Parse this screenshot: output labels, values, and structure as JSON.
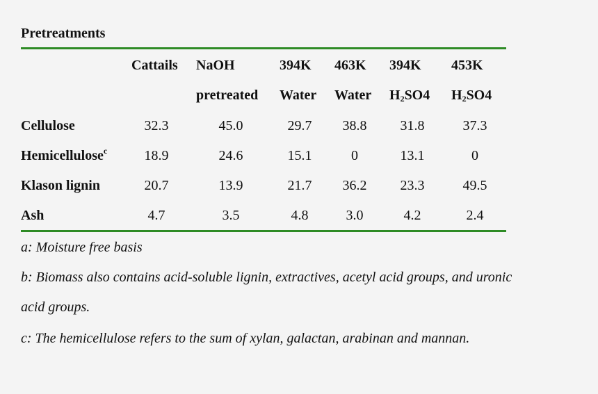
{
  "title": "Pretreatments",
  "header": {
    "row1": [
      "Cattails",
      "NaOH",
      "394K",
      "463K",
      "394K",
      "453K"
    ],
    "row2": [
      "pretreated",
      "Water",
      "Water",
      "H",
      "SO4",
      "H",
      "SO4"
    ],
    "subscript": "2"
  },
  "rows": [
    {
      "label": "Cellulose",
      "values": [
        "32.3",
        "45.0",
        "29.7",
        "38.8",
        "31.8",
        "37.3"
      ]
    },
    {
      "label": "Hemicellulose",
      "sup": "c",
      "values": [
        "18.9",
        "24.6",
        "15.1",
        "0",
        "13.1",
        "0"
      ]
    },
    {
      "label": "Klason lignin",
      "values": [
        "20.7",
        "13.9",
        "21.7",
        "36.2",
        "23.3",
        "49.5"
      ]
    },
    {
      "label": "Ash",
      "values": [
        "4.7",
        "3.5",
        "4.8",
        "3.0",
        "4.2",
        "2.4"
      ]
    }
  ],
  "notes": {
    "a": "a: Moisture free basis",
    "b1": "b: Biomass also contains acid-soluble lignin, extractives, acetyl acid groups, and uronic",
    "b2": "acid groups.",
    "c": "c: The hemicellulose refers to the sum of xylan, galactan, arabinan and mannan."
  },
  "colors": {
    "rule": "#2e8b25",
    "background": "#f4f4f4"
  }
}
